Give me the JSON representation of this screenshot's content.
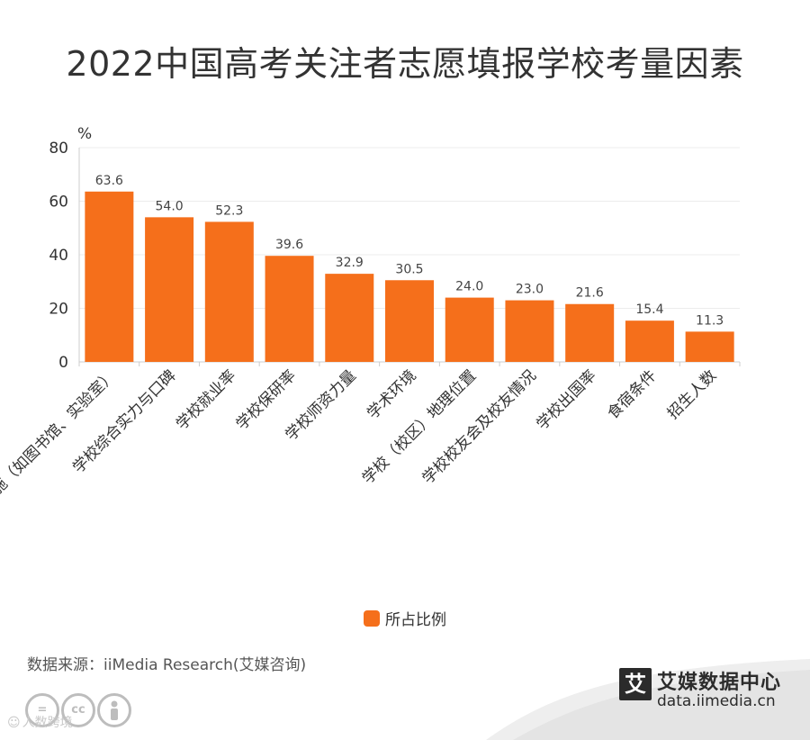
{
  "title": "2022中国高考关注者志愿填报学校考量因素",
  "chart_data": {
    "type": "bar",
    "title": "2022中国高考关注者志愿填报学校考量因素",
    "ylabel": "%",
    "ylim": [
      0,
      80
    ],
    "yticks": [
      0,
      20,
      40,
      60,
      80
    ],
    "grid": true,
    "legend_position": "bottom-center",
    "color": "#f56f1b",
    "categories": [
      "学校硬件设施（如图书馆、实验室）",
      "学校综合实力与口碑",
      "学校就业率",
      "学校保研率",
      "学校师资力量",
      "学术环境",
      "学校（校区）地理位置",
      "学校校友会及校友情况",
      "学校出国率",
      "食宿条件",
      "招生人数"
    ],
    "series": [
      {
        "name": "所占比例",
        "values": [
          63.6,
          54.0,
          52.3,
          39.6,
          32.9,
          30.5,
          24.0,
          23.0,
          21.6,
          15.4,
          11.3
        ]
      }
    ]
  },
  "legend": {
    "label": "所占比例",
    "color": "#f56f1b"
  },
  "source": "数据来源：iiMedia Research(艾媒咨询)",
  "watermark": {
    "text": "人数跨境",
    "cc_label": "cc"
  },
  "brand": {
    "logo_char": "艾",
    "name": "艾媒数据中心",
    "url": "data.iimedia.cn"
  }
}
